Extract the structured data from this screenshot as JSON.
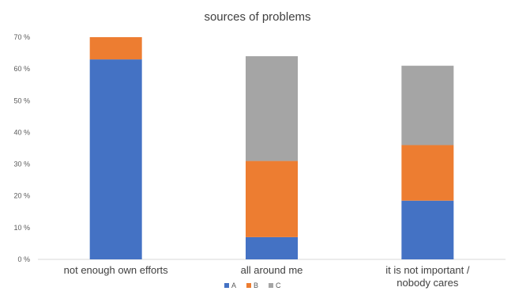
{
  "chart_data": {
    "type": "bar",
    "stacked": true,
    "title": "sources of problems",
    "categories": [
      [
        "not enough own efforts"
      ],
      [
        "all around me"
      ],
      [
        "it is not important /",
        "nobody cares"
      ]
    ],
    "series": [
      {
        "name": "A",
        "color": "#4472C4",
        "values": [
          63,
          7,
          18.5
        ]
      },
      {
        "name": "B",
        "color": "#ED7D31",
        "values": [
          7,
          24,
          17.5
        ]
      },
      {
        "name": "C",
        "color": "#A5A5A5",
        "values": [
          0,
          33,
          25
        ]
      }
    ],
    "yticks": [
      "0 %",
      "10 %",
      "20 %",
      "30 %",
      "40 %",
      "50 %",
      "60 %",
      "70 %"
    ],
    "ylim": [
      0,
      70
    ],
    "grid": false,
    "legend": "bottom"
  }
}
